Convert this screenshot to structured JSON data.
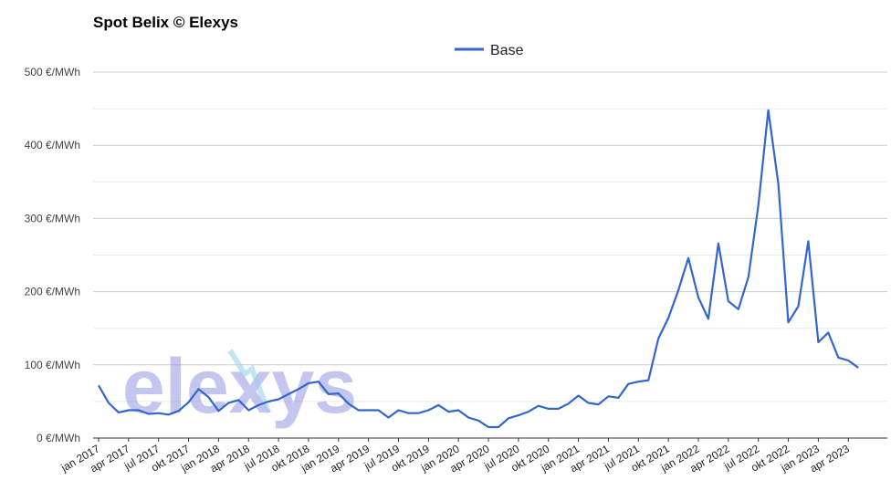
{
  "chart_data": {
    "type": "line",
    "title": "Spot Belix © Elexys",
    "xlabel": "",
    "ylabel": "",
    "ylim": [
      0,
      500
    ],
    "yticks": [
      {
        "value": 0,
        "label": "0 €/MWh"
      },
      {
        "value": 100,
        "label": "100 €/MWh"
      },
      {
        "value": 200,
        "label": "200 €/MWh"
      },
      {
        "value": 300,
        "label": "300 €/MWh"
      },
      {
        "value": 400,
        "label": "400 €/MWh"
      },
      {
        "value": 500,
        "label": "500 €/MWh"
      }
    ],
    "xticks": [
      "jan 2017",
      "apr 2017",
      "jul 2017",
      "okt 2017",
      "jan 2018",
      "apr 2018",
      "jul 2018",
      "okt 2018",
      "jan 2019",
      "apr 2019",
      "jul 2019",
      "okt 2019",
      "jan 2020",
      "apr 2020",
      "jul 2020",
      "okt 2020",
      "jan 2021",
      "apr 2021",
      "jul 2021",
      "okt 2021",
      "jan 2022",
      "apr 2022",
      "jul 2022",
      "okt 2022",
      "jan 2023",
      "apr 2023"
    ],
    "grid": true,
    "legend_position": "top-center",
    "line_color": "#3366cc",
    "series": [
      {
        "name": "Base",
        "x": [
          "2017-01",
          "2017-02",
          "2017-03",
          "2017-04",
          "2017-05",
          "2017-06",
          "2017-07",
          "2017-08",
          "2017-09",
          "2017-10",
          "2017-11",
          "2017-12",
          "2018-01",
          "2018-02",
          "2018-03",
          "2018-04",
          "2018-05",
          "2018-06",
          "2018-07",
          "2018-08",
          "2018-09",
          "2018-10",
          "2018-11",
          "2018-12",
          "2019-01",
          "2019-02",
          "2019-03",
          "2019-04",
          "2019-05",
          "2019-06",
          "2019-07",
          "2019-08",
          "2019-09",
          "2019-10",
          "2019-11",
          "2019-12",
          "2020-01",
          "2020-02",
          "2020-03",
          "2020-04",
          "2020-05",
          "2020-06",
          "2020-07",
          "2020-08",
          "2020-09",
          "2020-10",
          "2020-11",
          "2020-12",
          "2021-01",
          "2021-02",
          "2021-03",
          "2021-04",
          "2021-05",
          "2021-06",
          "2021-07",
          "2021-08",
          "2021-09",
          "2021-10",
          "2021-11",
          "2021-12",
          "2022-01",
          "2022-02",
          "2022-03",
          "2022-04",
          "2022-05",
          "2022-06",
          "2022-07",
          "2022-08",
          "2022-09",
          "2022-10",
          "2022-11",
          "2022-12",
          "2023-01",
          "2023-02",
          "2023-03",
          "2023-04",
          "2023-05"
        ],
        "values": [
          72,
          48,
          35,
          38,
          38,
          33,
          34,
          32,
          37,
          49,
          67,
          56,
          37,
          48,
          52,
          38,
          45,
          50,
          53,
          60,
          67,
          75,
          77,
          60,
          61,
          47,
          38,
          38,
          38,
          28,
          38,
          34,
          34,
          38,
          45,
          36,
          38,
          28,
          24,
          15,
          15,
          27,
          31,
          36,
          44,
          40,
          40,
          47,
          58,
          48,
          46,
          57,
          55,
          74,
          77,
          79,
          136,
          164,
          202,
          246,
          192,
          163,
          266,
          187,
          176,
          220,
          318,
          448,
          347,
          158,
          180,
          269,
          131,
          144,
          110,
          106,
          96
        ]
      }
    ]
  }
}
